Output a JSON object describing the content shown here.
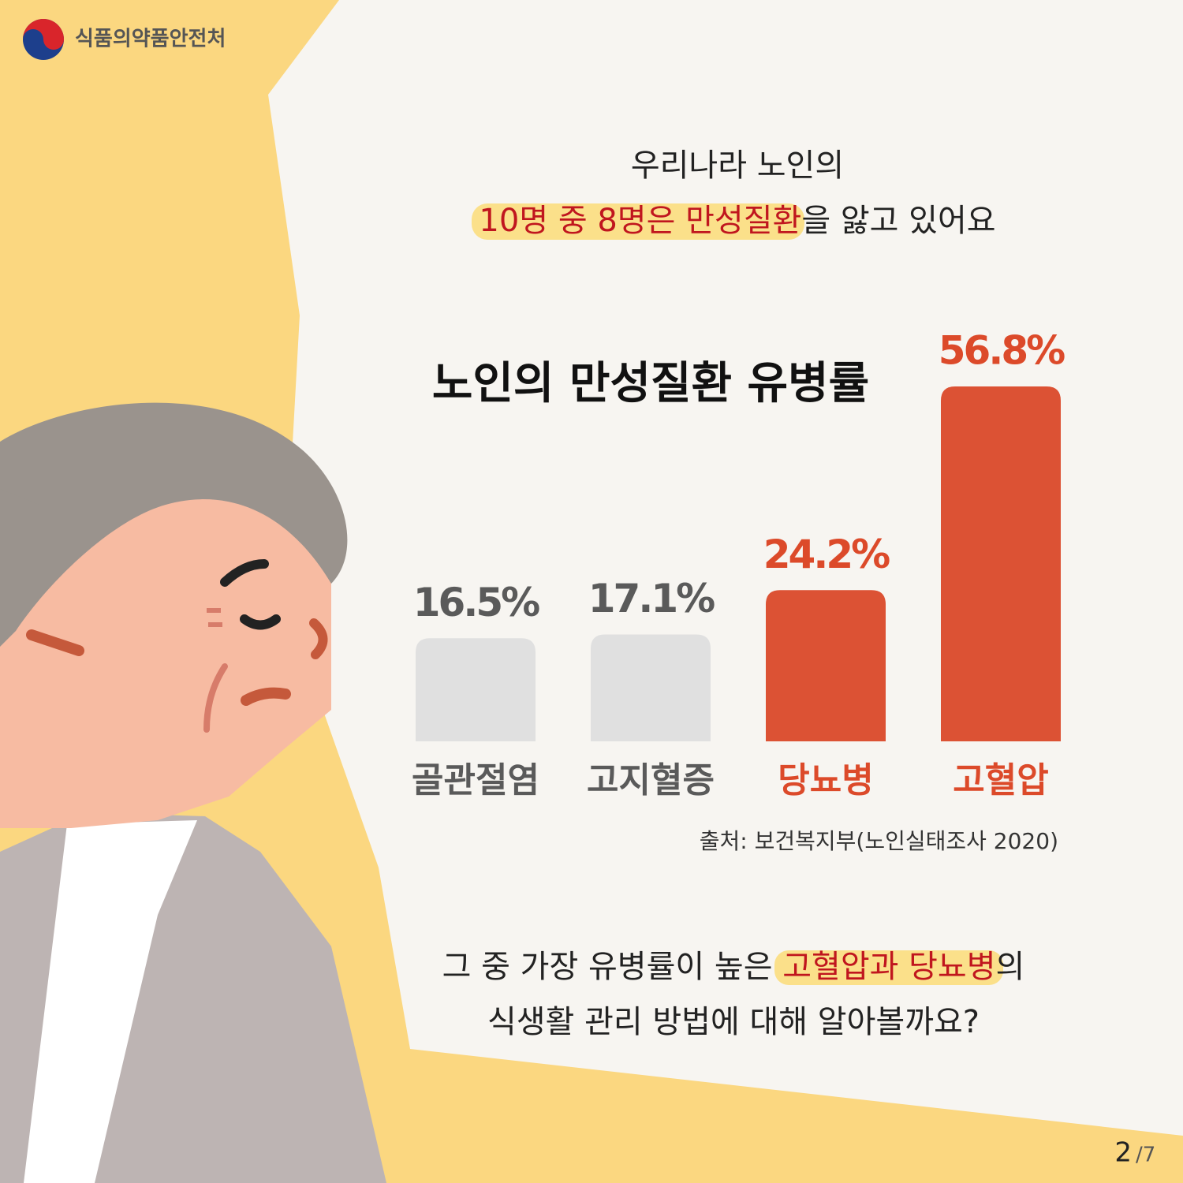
{
  "header": {
    "org": "식품의약품안전처"
  },
  "intro": {
    "line1": "우리나라 노인의",
    "highlight": "10명 중 8명은 만성질환",
    "rest": "을 앓고 있어요"
  },
  "chart_data": {
    "type": "bar",
    "title": "노인의 만성질환 유병률",
    "categories": [
      "골관절염",
      "고지혈증",
      "당뇨병",
      "고혈압"
    ],
    "values": [
      16.5,
      17.1,
      24.2,
      56.8
    ],
    "value_labels": [
      "16.5%",
      "17.1%",
      "24.2%",
      "56.8%"
    ],
    "colors": [
      "#e0e0e0",
      "#e0e0e0",
      "#dc5234",
      "#dc5234"
    ],
    "label_colors": [
      "#5a5a5a",
      "#5a5a5a",
      "#dc4a2a",
      "#dc4a2a"
    ],
    "source": "출처: 보건복지부(노인실태조사 2020)"
  },
  "outro": {
    "pre": "그 중 가장 유병률이 높은 ",
    "highlight": "고혈압과 당뇨병",
    "post": "의",
    "line2": "식생활 관리 방법에 대해 알아볼까요?"
  },
  "page": {
    "current": "2",
    "total": "/7"
  }
}
